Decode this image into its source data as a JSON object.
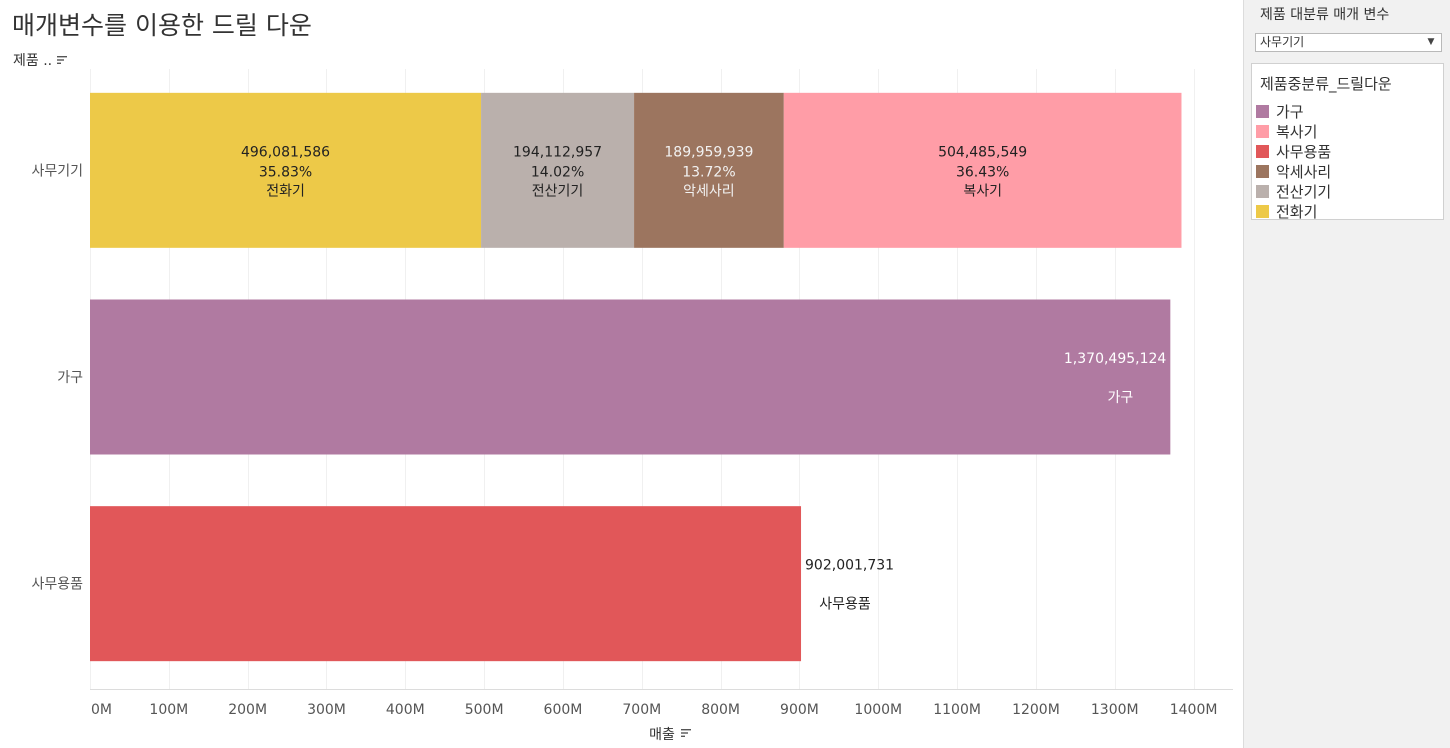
{
  "title": "매개변수를 이용한 드릴 다운",
  "row_field_label": "제품 ..",
  "right_panel": {
    "parameter": {
      "title": "제품 대분류 매개 변수",
      "selected": "사무기기"
    },
    "legend": {
      "title": "제품중분류_드릴다운",
      "items": [
        {
          "label": "가구",
          "color": "#b07aa1"
        },
        {
          "label": "복사기",
          "color": "#ff9da7"
        },
        {
          "label": "사무용품",
          "color": "#e15759"
        },
        {
          "label": "악세사리",
          "color": "#9c755f"
        },
        {
          "label": "전산기기",
          "color": "#bab0ac"
        },
        {
          "label": "전화기",
          "color": "#edc948"
        }
      ]
    }
  },
  "chart_data": {
    "type": "bar",
    "orientation": "horizontal",
    "stacked": true,
    "xlabel": "매출",
    "xlim": [
      0,
      1450000000
    ],
    "x_ticks": [
      {
        "value": 0,
        "label": "0M"
      },
      {
        "value": 100000000,
        "label": "100M"
      },
      {
        "value": 200000000,
        "label": "200M"
      },
      {
        "value": 300000000,
        "label": "300M"
      },
      {
        "value": 400000000,
        "label": "400M"
      },
      {
        "value": 500000000,
        "label": "500M"
      },
      {
        "value": 600000000,
        "label": "600M"
      },
      {
        "value": 700000000,
        "label": "700M"
      },
      {
        "value": 800000000,
        "label": "800M"
      },
      {
        "value": 900000000,
        "label": "900M"
      },
      {
        "value": 1000000000,
        "label": "1000M"
      },
      {
        "value": 1100000000,
        "label": "1100M"
      },
      {
        "value": 1200000000,
        "label": "1200M"
      },
      {
        "value": 1300000000,
        "label": "1300M"
      },
      {
        "value": 1400000000,
        "label": "1400M"
      }
    ],
    "grid": true,
    "legend_position": "right",
    "rows": [
      {
        "category": "사무기기",
        "segments": [
          {
            "name": "전화기",
            "value": 496081586,
            "value_label": "496,081,586",
            "pct_label": "35.83%",
            "color": "#edc948",
            "text_color": "#222222"
          },
          {
            "name": "전산기기",
            "value": 194112957,
            "value_label": "194,112,957",
            "pct_label": "14.02%",
            "color": "#bab0ac",
            "text_color": "#222222"
          },
          {
            "name": "악세사리",
            "value": 189959939,
            "value_label": "189,959,939",
            "pct_label": "13.72%",
            "color": "#9c755f",
            "text_color": "#f2f2f2"
          },
          {
            "name": "복사기",
            "value": 504485549,
            "value_label": "504,485,549",
            "pct_label": "36.43%",
            "color": "#ff9da7",
            "text_color": "#222222"
          }
        ]
      },
      {
        "category": "가구",
        "segments": [
          {
            "name": "가구",
            "value": 1370495124,
            "value_label": "1,370,495,124",
            "pct_label": "",
            "color": "#b07aa1",
            "text_color": "#ffffff"
          }
        ]
      },
      {
        "category": "사무용품",
        "segments": [
          {
            "name": "사무용품",
            "value": 902001731,
            "value_label": "902,001,731",
            "pct_label": "",
            "color": "#e15759",
            "text_color": "#222222"
          }
        ]
      }
    ]
  }
}
